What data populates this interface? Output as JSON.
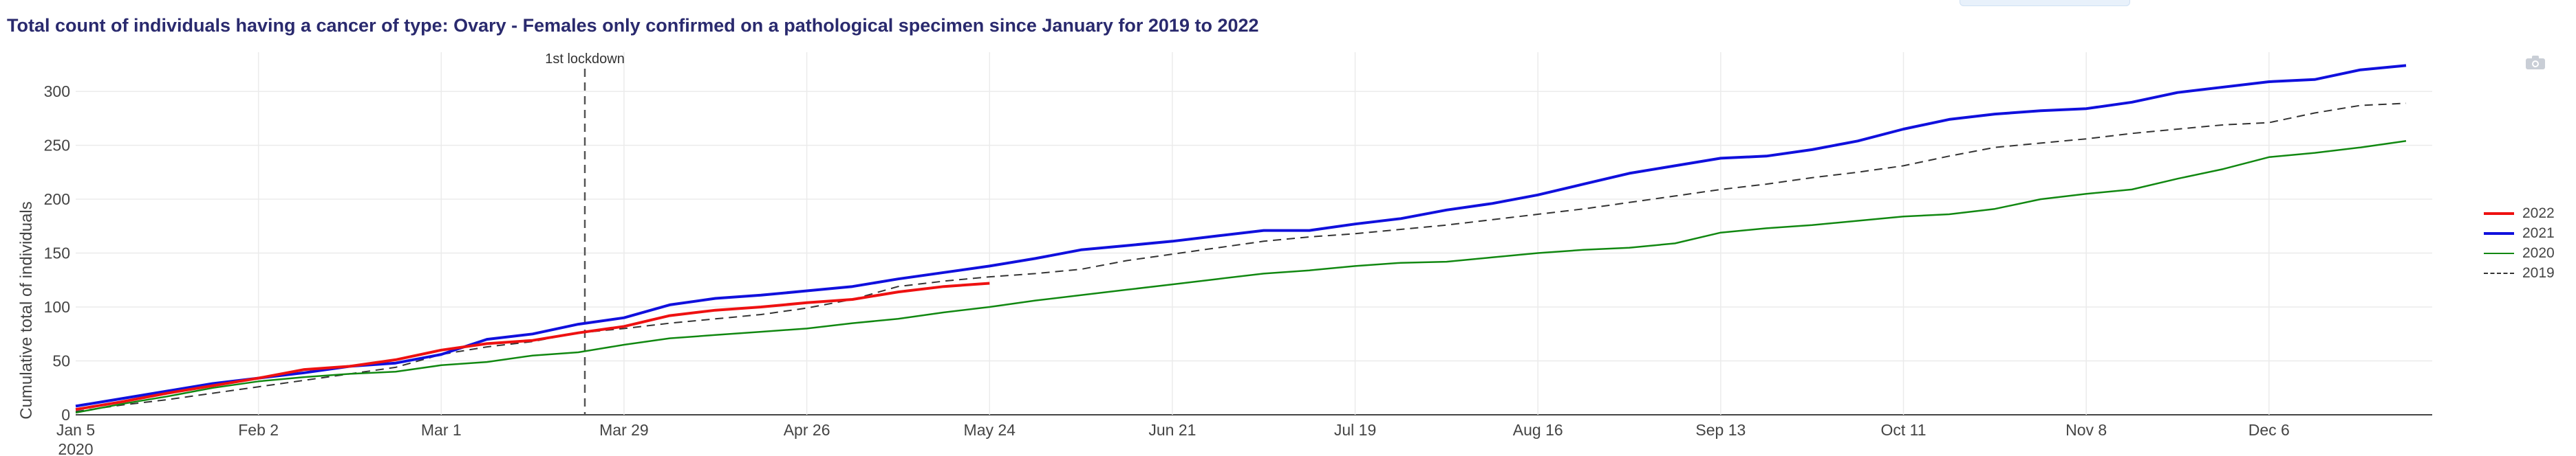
{
  "title": "Total count of individuals having a cancer of type: Ovary - Females only confirmed on a pathological specimen since January for 2019 to 2022",
  "icons": {
    "camera": "camera-icon"
  },
  "chart_data": {
    "type": "line",
    "xlabel": "",
    "ylabel": "Cumulative total of individuals",
    "ylim": [
      0,
      330
    ],
    "yticks": [
      0,
      50,
      100,
      150,
      200,
      250,
      300
    ],
    "grid": true,
    "legend_position": "right",
    "x_axis": {
      "start": "2020-01-05",
      "end": "2020-12-31",
      "tick_labels": [
        "Jan 5",
        "Feb 2",
        "Mar 1",
        "Mar 29",
        "Apr 26",
        "May 24",
        "Jun 21",
        "Jul 19",
        "Aug 16",
        "Sep 13",
        "Oct 11",
        "Nov 8",
        "Dec 6"
      ],
      "tick_dates": [
        "2020-01-05",
        "2020-02-02",
        "2020-03-01",
        "2020-03-29",
        "2020-04-26",
        "2020-05-24",
        "2020-06-21",
        "2020-07-19",
        "2020-08-16",
        "2020-09-13",
        "2020-10-11",
        "2020-11-08",
        "2020-12-06"
      ],
      "year_label": "2020"
    },
    "annotations": [
      {
        "label": "1st lockdown",
        "x": "2020-03-23",
        "style": "dashed-vertical"
      }
    ],
    "series": [
      {
        "name": "2022",
        "color": "#ee1111",
        "dash": "solid",
        "width": 4,
        "x": [
          "2020-01-05",
          "2020-01-12",
          "2020-01-19",
          "2020-01-26",
          "2020-02-02",
          "2020-02-09",
          "2020-02-16",
          "2020-02-23",
          "2020-03-01",
          "2020-03-08",
          "2020-03-15",
          "2020-03-22",
          "2020-03-29",
          "2020-04-05",
          "2020-04-12",
          "2020-04-19",
          "2020-04-26",
          "2020-05-03",
          "2020-05-10",
          "2020-05-17",
          "2020-05-24"
        ],
        "y": [
          5,
          12,
          20,
          27,
          34,
          42,
          45,
          51,
          60,
          66,
          69,
          76,
          82,
          92,
          97,
          100,
          104,
          107,
          114,
          119,
          122
        ]
      },
      {
        "name": "2021",
        "color": "#1010dd",
        "dash": "solid",
        "width": 4,
        "x": [
          "2020-01-05",
          "2020-01-12",
          "2020-01-19",
          "2020-01-26",
          "2020-02-02",
          "2020-02-09",
          "2020-02-16",
          "2020-02-23",
          "2020-03-01",
          "2020-03-08",
          "2020-03-15",
          "2020-03-22",
          "2020-03-29",
          "2020-04-05",
          "2020-04-12",
          "2020-04-19",
          "2020-04-26",
          "2020-05-03",
          "2020-05-10",
          "2020-05-17",
          "2020-05-24",
          "2020-05-31",
          "2020-06-07",
          "2020-06-14",
          "2020-06-21",
          "2020-06-28",
          "2020-07-05",
          "2020-07-12",
          "2020-07-19",
          "2020-07-26",
          "2020-08-02",
          "2020-08-09",
          "2020-08-16",
          "2020-08-23",
          "2020-08-30",
          "2020-09-06",
          "2020-09-13",
          "2020-09-20",
          "2020-09-27",
          "2020-10-04",
          "2020-10-11",
          "2020-10-18",
          "2020-10-25",
          "2020-11-01",
          "2020-11-08",
          "2020-11-15",
          "2020-11-22",
          "2020-11-29",
          "2020-12-06",
          "2020-12-13",
          "2020-12-20",
          "2020-12-27"
        ],
        "y": [
          8,
          15,
          22,
          29,
          34,
          39,
          45,
          48,
          56,
          70,
          75,
          84,
          90,
          102,
          108,
          111,
          115,
          119,
          126,
          132,
          138,
          145,
          153,
          157,
          161,
          166,
          171,
          171,
          177,
          182,
          190,
          196,
          204,
          214,
          224,
          231,
          238,
          240,
          246,
          254,
          265,
          274,
          279,
          282,
          284,
          290,
          299,
          304,
          309,
          311,
          320,
          324
        ]
      },
      {
        "name": "2020",
        "color": "#118811",
        "dash": "solid",
        "width": 2.5,
        "x": [
          "2020-01-05",
          "2020-01-12",
          "2020-01-19",
          "2020-01-26",
          "2020-02-02",
          "2020-02-09",
          "2020-02-16",
          "2020-02-23",
          "2020-03-01",
          "2020-03-08",
          "2020-03-15",
          "2020-03-22",
          "2020-03-29",
          "2020-04-05",
          "2020-04-12",
          "2020-04-19",
          "2020-04-26",
          "2020-05-03",
          "2020-05-10",
          "2020-05-17",
          "2020-05-24",
          "2020-05-31",
          "2020-06-07",
          "2020-06-14",
          "2020-06-21",
          "2020-06-28",
          "2020-07-05",
          "2020-07-12",
          "2020-07-19",
          "2020-07-26",
          "2020-08-02",
          "2020-08-09",
          "2020-08-16",
          "2020-08-23",
          "2020-08-30",
          "2020-09-06",
          "2020-09-13",
          "2020-09-20",
          "2020-09-27",
          "2020-10-04",
          "2020-10-11",
          "2020-10-18",
          "2020-10-25",
          "2020-11-01",
          "2020-11-08",
          "2020-11-15",
          "2020-11-22",
          "2020-11-29",
          "2020-12-06",
          "2020-12-13",
          "2020-12-20",
          "2020-12-27"
        ],
        "y": [
          2,
          10,
          17,
          25,
          31,
          35,
          38,
          40,
          46,
          49,
          55,
          58,
          65,
          71,
          74,
          77,
          80,
          85,
          89,
          95,
          100,
          106,
          111,
          116,
          121,
          126,
          131,
          134,
          138,
          141,
          142,
          146,
          150,
          153,
          155,
          159,
          169,
          173,
          176,
          180,
          184,
          186,
          191,
          200,
          205,
          209,
          219,
          228,
          239,
          243,
          248,
          254
        ]
      },
      {
        "name": "2019",
        "color": "#333333",
        "dash": "dashed",
        "width": 2,
        "x": [
          "2020-01-05",
          "2020-01-12",
          "2020-01-19",
          "2020-01-26",
          "2020-02-02",
          "2020-02-09",
          "2020-02-16",
          "2020-02-23",
          "2020-03-01",
          "2020-03-08",
          "2020-03-15",
          "2020-03-22",
          "2020-03-29",
          "2020-04-05",
          "2020-04-12",
          "2020-04-19",
          "2020-04-26",
          "2020-05-03",
          "2020-05-10",
          "2020-05-17",
          "2020-05-24",
          "2020-05-31",
          "2020-06-07",
          "2020-06-14",
          "2020-06-21",
          "2020-06-28",
          "2020-07-05",
          "2020-07-12",
          "2020-07-19",
          "2020-07-26",
          "2020-08-02",
          "2020-08-09",
          "2020-08-16",
          "2020-08-23",
          "2020-08-30",
          "2020-09-06",
          "2020-09-13",
          "2020-09-20",
          "2020-09-27",
          "2020-10-04",
          "2020-10-11",
          "2020-10-18",
          "2020-10-25",
          "2020-11-01",
          "2020-11-08",
          "2020-11-15",
          "2020-11-22",
          "2020-11-29",
          "2020-12-06",
          "2020-12-13",
          "2020-12-20",
          "2020-12-27"
        ],
        "y": [
          3,
          9,
          14,
          20,
          26,
          32,
          38,
          44,
          56,
          63,
          68,
          76,
          80,
          85,
          89,
          93,
          99,
          107,
          119,
          124,
          128,
          131,
          135,
          143,
          149,
          155,
          161,
          165,
          168,
          172,
          176,
          181,
          186,
          191,
          197,
          203,
          209,
          214,
          220,
          225,
          231,
          240,
          248,
          252,
          256,
          261,
          265,
          269,
          271,
          280,
          287,
          289
        ]
      }
    ]
  }
}
